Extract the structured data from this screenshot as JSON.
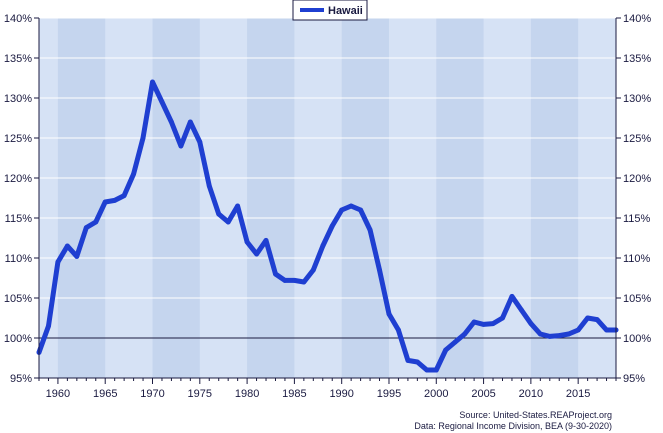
{
  "chart_data": {
    "type": "line",
    "title": "",
    "xlabel": "",
    "ylabel": "",
    "xlim": [
      1958,
      2019
    ],
    "ylim": [
      95,
      140
    ],
    "grid": true,
    "reference_line": 100,
    "x_ticks": [
      1960,
      1965,
      1970,
      1975,
      1980,
      1985,
      1990,
      1995,
      2000,
      2005,
      2010,
      2015
    ],
    "x_tick_labels": [
      "1960",
      "1965",
      "1970",
      "1975",
      "1980",
      "1985",
      "1990",
      "1995",
      "2000",
      "2005",
      "2010",
      "2015"
    ],
    "y_ticks": [
      95,
      100,
      105,
      110,
      115,
      120,
      125,
      130,
      135,
      140
    ],
    "y_tick_labels": [
      "95%",
      "100%",
      "105%",
      "110%",
      "115%",
      "120%",
      "125%",
      "130%",
      "135%",
      "140%"
    ],
    "legend": {
      "position": "top-center",
      "entries": [
        "Hawaii"
      ]
    },
    "colors": {
      "series": "#1f3fd1",
      "plot_bg": "#d6e2f5",
      "band": "#c5d5ee",
      "grid": "#ffffff",
      "axis": "#1a1a40"
    },
    "series": [
      {
        "name": "Hawaii",
        "x": [
          1958,
          1959,
          1960,
          1961,
          1962,
          1963,
          1964,
          1965,
          1966,
          1967,
          1968,
          1969,
          1970,
          1971,
          1972,
          1973,
          1974,
          1975,
          1976,
          1977,
          1978,
          1979,
          1980,
          1981,
          1982,
          1983,
          1984,
          1985,
          1986,
          1987,
          1988,
          1989,
          1990,
          1991,
          1992,
          1993,
          1994,
          1995,
          1996,
          1997,
          1998,
          1999,
          2000,
          2001,
          2002,
          2003,
          2004,
          2005,
          2006,
          2007,
          2008,
          2009,
          2010,
          2011,
          2012,
          2013,
          2014,
          2015,
          2016,
          2017,
          2018,
          2019
        ],
        "values": [
          98.2,
          101.5,
          109.5,
          111.5,
          110.2,
          113.8,
          114.5,
          117.0,
          117.2,
          117.8,
          120.5,
          125.0,
          132.0,
          129.5,
          127.0,
          124.0,
          127.0,
          124.5,
          119.0,
          115.5,
          114.5,
          116.5,
          112.0,
          110.5,
          112.2,
          108.0,
          107.2,
          107.2,
          107.0,
          108.5,
          111.5,
          114.0,
          116.0,
          116.5,
          116.0,
          113.5,
          108.5,
          103.0,
          101.0,
          97.2,
          97.0,
          96.0,
          96.0,
          98.5,
          99.5,
          100.5,
          102.0,
          101.7,
          101.8,
          102.5,
          105.2,
          103.5,
          101.8,
          100.5,
          100.2,
          100.3,
          100.5,
          101.0,
          102.5,
          102.3,
          101.0,
          101.0
        ]
      }
    ]
  },
  "source_line1": "Source: United-States.REAProject.org",
  "source_line2": "Data: Regional Income Division, BEA (9-30-2020)"
}
